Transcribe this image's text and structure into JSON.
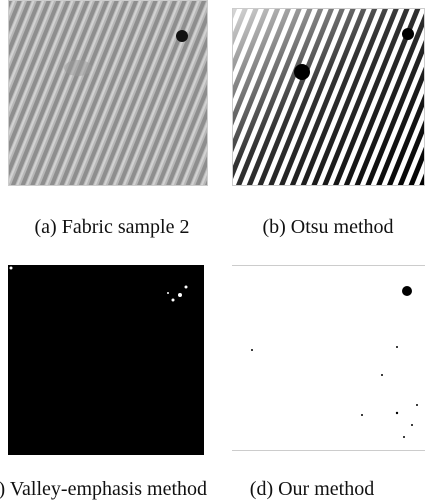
{
  "panels": [
    {
      "caption": "(a) Fabric sample 2"
    },
    {
      "caption": "(b) Otsu method"
    },
    {
      "caption": "(c) Valley-emphasis method"
    },
    {
      "caption": "(d) Our method"
    }
  ]
}
